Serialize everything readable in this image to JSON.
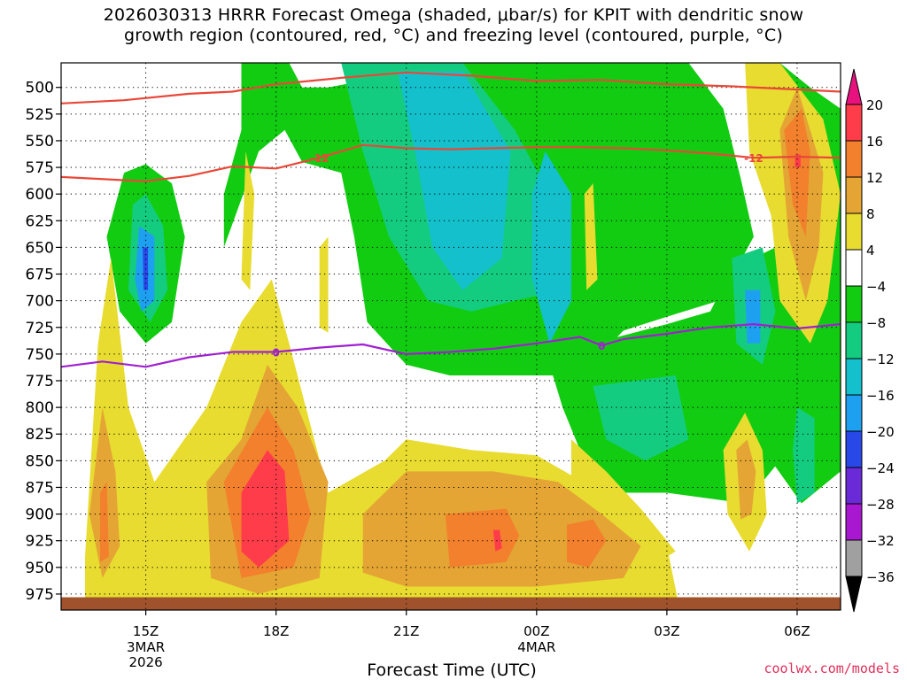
{
  "title": {
    "line1": "2026030313 HRRR Forecast Omega (shaded, μbar/s) for KPIT with dendritic snow",
    "line2": "growth region (contoured, red, °C) and freezing level (contoured, purple, °C)"
  },
  "credit": "coolwx.com/models",
  "chart_data": {
    "type": "heatmap",
    "title": "2026030313 HRRR Forecast Omega (shaded, μbar/s) for KPIT with dendritic snow growth region (contoured, red, °C) and freezing level (contoured, purple, °C)",
    "xlabel": "Forecast Time (UTC)",
    "ylabel": "",
    "x_ticks": [
      {
        "label": "15Z",
        "sub": [
          "3MAR",
          "2026"
        ],
        "hour": 15
      },
      {
        "label": "18Z",
        "sub": [],
        "hour": 18
      },
      {
        "label": "21Z",
        "sub": [],
        "hour": 21
      },
      {
        "label": "00Z",
        "sub": [
          "4MAR"
        ],
        "hour": 24
      },
      {
        "label": "03Z",
        "sub": [],
        "hour": 27
      },
      {
        "label": "06Z",
        "sub": [],
        "hour": 30
      }
    ],
    "x_range_hours": [
      13.05,
      31.0
    ],
    "y_range_hpa": [
      477,
      990
    ],
    "y_ticks": [
      "500",
      "525",
      "550",
      "575",
      "600",
      "625",
      "650",
      "675",
      "700",
      "725",
      "750",
      "775",
      "800",
      "825",
      "850",
      "875",
      "900",
      "925",
      "950",
      "975"
    ],
    "grid": true,
    "colorbar": {
      "levels": [
        20,
        16,
        12,
        8,
        4,
        -4,
        -8,
        -12,
        -16,
        -20,
        -24,
        -28,
        -32,
        -36
      ],
      "colors": [
        {
          "from": 16,
          "to": 20,
          "color": "#ff3d4a"
        },
        {
          "from": 12,
          "to": 16,
          "color": "#f2802c"
        },
        {
          "from": 8,
          "to": 12,
          "color": "#e4a534"
        },
        {
          "from": 4,
          "to": 8,
          "color": "#e8dc30"
        },
        {
          "from": -4,
          "to": 4,
          "color": "#ffffff"
        },
        {
          "from": -8,
          "to": -4,
          "color": "#12cc12"
        },
        {
          "from": -12,
          "to": -8,
          "color": "#14cc80"
        },
        {
          "from": -16,
          "to": -12,
          "color": "#14c0cc"
        },
        {
          "from": -20,
          "to": -16,
          "color": "#1ea0f0"
        },
        {
          "from": -24,
          "to": -20,
          "color": "#2848e8"
        },
        {
          "from": -28,
          "to": -24,
          "color": "#6a2ad8"
        },
        {
          "from": -32,
          "to": -28,
          "color": "#a818d0"
        },
        {
          "from": -36,
          "to": -32,
          "color": "#a0a0a0"
        }
      ],
      "above_max_color": "#e8127e",
      "below_min_color": "#000000"
    },
    "contours": [
      {
        "color": "#e84838",
        "label": "",
        "points": [
          [
            13.05,
            515
          ],
          [
            14.5,
            512
          ],
          [
            16,
            506
          ],
          [
            17,
            504
          ],
          [
            18,
            497
          ],
          [
            19.5,
            491
          ],
          [
            21,
            486
          ],
          [
            22.5,
            489
          ],
          [
            24,
            494
          ],
          [
            25.5,
            493
          ],
          [
            27,
            497
          ],
          [
            28.5,
            499
          ],
          [
            30,
            502
          ],
          [
            31,
            504
          ]
        ]
      },
      {
        "color": "#e84838",
        "label": "-12",
        "points": [
          [
            13.05,
            584
          ],
          [
            14.5,
            587
          ],
          [
            15,
            588
          ],
          [
            16,
            583
          ],
          [
            17,
            574
          ],
          [
            18,
            576
          ],
          [
            19,
            566
          ],
          [
            20,
            554
          ],
          [
            21,
            557
          ],
          [
            22,
            558
          ],
          [
            23,
            557
          ],
          [
            24,
            556
          ],
          [
            25,
            556
          ],
          [
            26,
            557
          ],
          [
            27,
            559
          ],
          [
            28,
            562
          ],
          [
            29,
            566
          ],
          [
            30,
            565
          ],
          [
            31,
            566
          ]
        ]
      },
      {
        "color": "#a020d0",
        "label": "0",
        "points": [
          [
            13.05,
            762
          ],
          [
            14,
            757
          ],
          [
            15,
            762
          ],
          [
            16,
            753
          ],
          [
            17,
            748
          ],
          [
            18,
            748
          ],
          [
            19,
            744
          ],
          [
            20,
            741
          ],
          [
            21,
            750
          ],
          [
            22,
            748
          ],
          [
            23,
            745
          ],
          [
            24,
            740
          ],
          [
            25,
            734
          ],
          [
            25.5,
            742
          ],
          [
            26,
            736
          ],
          [
            27,
            731
          ],
          [
            28,
            725
          ],
          [
            29,
            722
          ],
          [
            30,
            726
          ],
          [
            31,
            722
          ]
        ]
      }
    ],
    "omega_features": [
      {
        "value": -8,
        "hour": 21.2,
        "hpa": 640,
        "rx": 3.2,
        "ry": 165
      },
      {
        "value": -12,
        "hour": 21.8,
        "hpa": 625,
        "rx": 2.2,
        "ry": 140
      },
      {
        "value": -16,
        "hour": 21.9,
        "hpa": 620,
        "rx": 1.4,
        "ry": 110
      },
      {
        "value": -16,
        "hour": 15.0,
        "hpa": 665,
        "rx": 0.45,
        "ry": 55
      },
      {
        "value": -24,
        "hour": 15.0,
        "hpa": 665,
        "rx": 0.15,
        "ry": 20
      },
      {
        "value": -16,
        "hour": 29.0,
        "hpa": 705,
        "rx": 0.3,
        "ry": 35
      },
      {
        "value": 20,
        "hour": 18.0,
        "hpa": 890,
        "rx": 0.9,
        "ry": 55
      },
      {
        "value": 16,
        "hour": 23.3,
        "hpa": 920,
        "rx": 1.0,
        "ry": 22
      },
      {
        "value": 16,
        "hour": 25.0,
        "hpa": 925,
        "rx": 0.7,
        "ry": 20
      },
      {
        "value": 20,
        "hour": 23.0,
        "hpa": 920,
        "rx": 0.2,
        "ry": 10
      },
      {
        "value": 16,
        "hour": 30.0,
        "hpa": 565,
        "rx": 0.4,
        "ry": 55
      },
      {
        "value": 16,
        "hour": 14.0,
        "hpa": 910,
        "rx": 0.25,
        "ry": 25
      }
    ],
    "terrain_color": "#a0522d"
  }
}
